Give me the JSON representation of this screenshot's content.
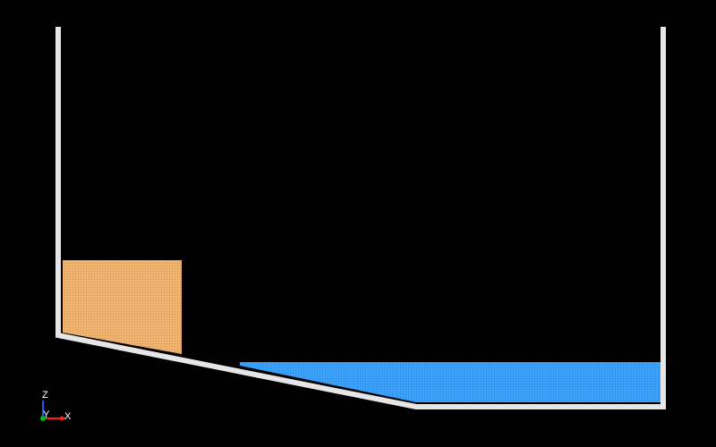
{
  "viewport": {
    "background": "#000000"
  },
  "scene": {
    "colors": {
      "boundary": "#e6e6e6",
      "block_fluid": "#f3b874",
      "block_grid": "#c98b44",
      "pool_fluid": "#3ea6ff",
      "pool_grid": "#1f74c8"
    },
    "elements": {
      "boundary": "tank-wall",
      "block": "fluid-block-orange",
      "pool": "fluid-pool-blue"
    }
  },
  "axes_triad": {
    "z_label": "Z",
    "y_label": "Y",
    "x_label": "X",
    "colors": {
      "z": "#1e5cff",
      "y": "#00c000",
      "x": "#ff2020"
    }
  }
}
